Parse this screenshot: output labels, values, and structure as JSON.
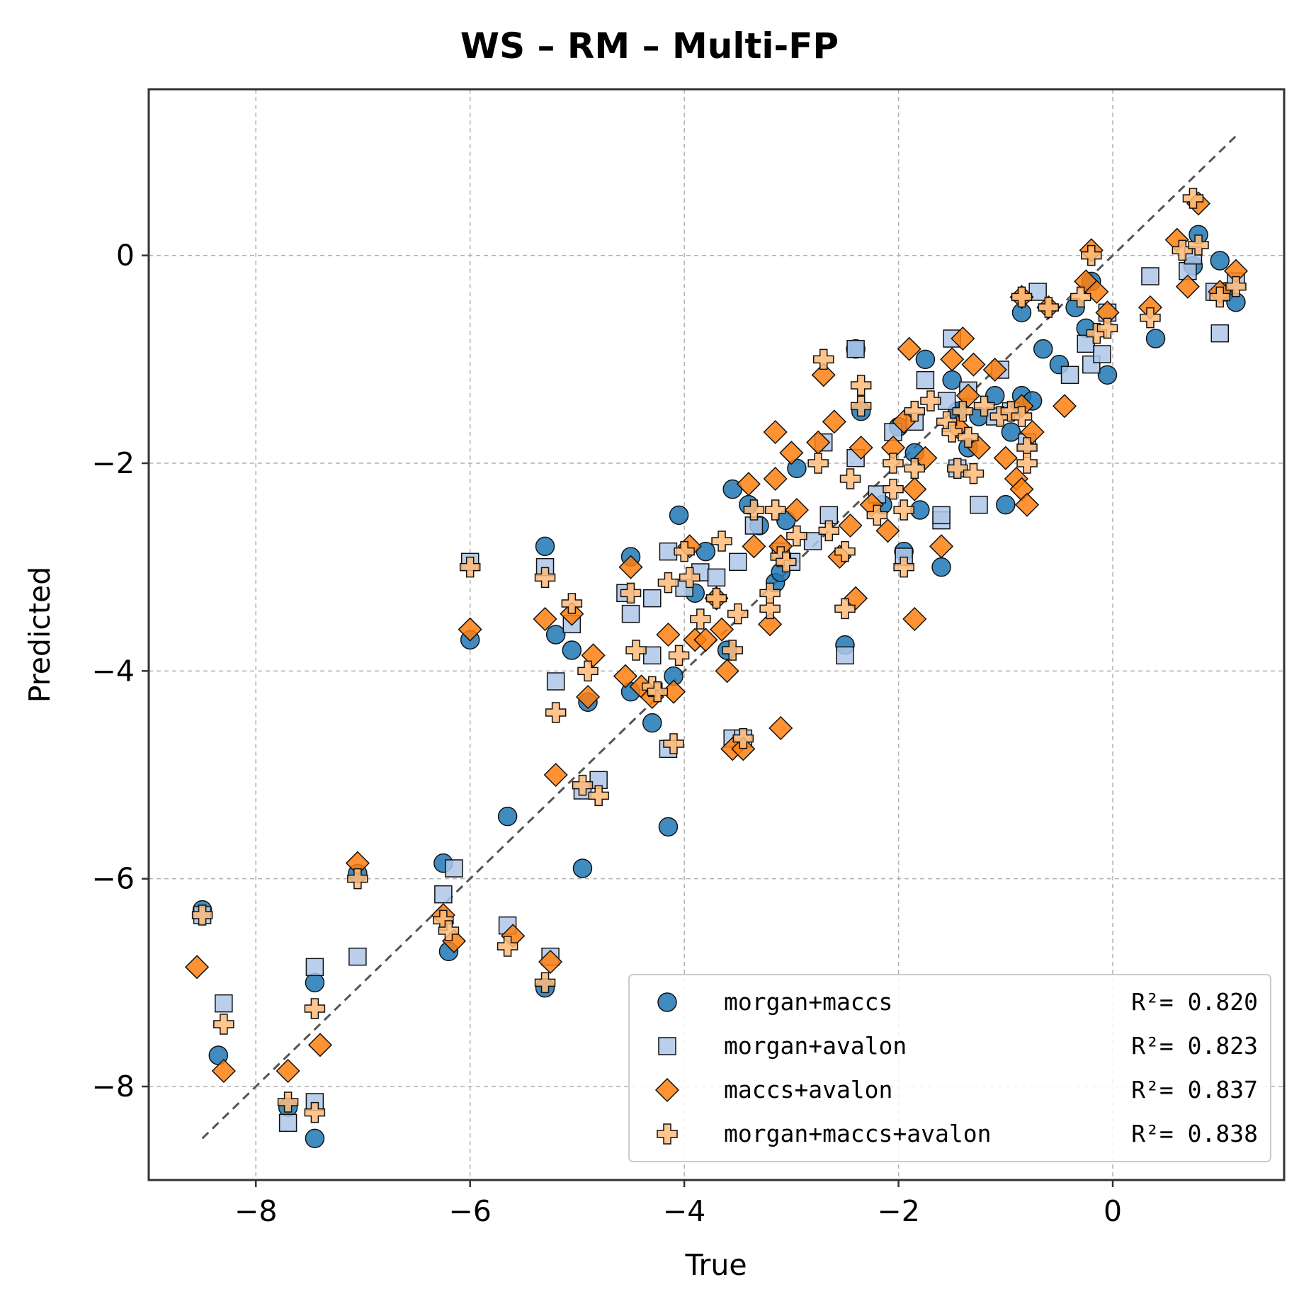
{
  "chart_data": {
    "type": "scatter",
    "title": "WS – RM – Multi-FP",
    "xlabel": "True",
    "ylabel": "Predicted",
    "xlim": [
      -9.0,
      1.6
    ],
    "ylim": [
      -8.9,
      1.6
    ],
    "xticks": [
      -8,
      -6,
      -4,
      -2,
      0
    ],
    "yticks": [
      -8,
      -6,
      -4,
      -2,
      0
    ],
    "grid": true,
    "legend_position": "lower-right",
    "identity_line": {
      "from": [
        -8.5,
        -8.5
      ],
      "to": [
        1.15,
        1.15
      ],
      "color": "#555555",
      "style": "dashed"
    },
    "series": [
      {
        "name": "morgan+maccs",
        "r2_label": "R²= 0.820",
        "marker": "circle",
        "color": "#1f77b4",
        "points": [
          [
            -8.5,
            -6.3
          ],
          [
            -8.35,
            -7.7
          ],
          [
            -7.7,
            -8.2
          ],
          [
            -7.45,
            -8.5
          ],
          [
            -7.45,
            -7.0
          ],
          [
            -7.05,
            -5.95
          ],
          [
            -6.25,
            -5.85
          ],
          [
            -6.2,
            -6.7
          ],
          [
            -6.0,
            -3.7
          ],
          [
            -5.65,
            -5.4
          ],
          [
            -5.3,
            -2.8
          ],
          [
            -5.3,
            -7.05
          ],
          [
            -5.2,
            -3.65
          ],
          [
            -5.05,
            -3.8
          ],
          [
            -4.95,
            -5.9
          ],
          [
            -4.9,
            -4.3
          ],
          [
            -4.5,
            -2.9
          ],
          [
            -4.5,
            -4.2
          ],
          [
            -4.3,
            -4.5
          ],
          [
            -4.15,
            -5.5
          ],
          [
            -4.1,
            -4.05
          ],
          [
            -4.05,
            -2.5
          ],
          [
            -3.9,
            -3.25
          ],
          [
            -3.8,
            -2.85
          ],
          [
            -3.6,
            -3.8
          ],
          [
            -3.55,
            -2.25
          ],
          [
            -3.4,
            -2.4
          ],
          [
            -3.3,
            -2.6
          ],
          [
            -3.15,
            -3.15
          ],
          [
            -3.1,
            -3.05
          ],
          [
            -3.05,
            -2.55
          ],
          [
            -2.95,
            -2.05
          ],
          [
            -2.5,
            -3.75
          ],
          [
            -2.4,
            -0.9
          ],
          [
            -2.35,
            -1.5
          ],
          [
            -2.15,
            -2.4
          ],
          [
            -2.0,
            -1.65
          ],
          [
            -1.95,
            -2.85
          ],
          [
            -1.85,
            -1.9
          ],
          [
            -1.8,
            -2.45
          ],
          [
            -1.75,
            -1.0
          ],
          [
            -1.6,
            -3.0
          ],
          [
            -1.5,
            -1.2
          ],
          [
            -1.45,
            -1.5
          ],
          [
            -1.35,
            -1.85
          ],
          [
            -1.25,
            -1.55
          ],
          [
            -1.1,
            -1.35
          ],
          [
            -1.0,
            -2.4
          ],
          [
            -0.95,
            -1.7
          ],
          [
            -0.85,
            -0.55
          ],
          [
            -0.85,
            -1.35
          ],
          [
            -0.75,
            -1.4
          ],
          [
            -0.65,
            -0.9
          ],
          [
            -0.5,
            -1.05
          ],
          [
            -0.35,
            -0.5
          ],
          [
            -0.25,
            -0.7
          ],
          [
            -0.2,
            -0.25
          ],
          [
            -0.05,
            -1.15
          ],
          [
            0.4,
            -0.8
          ],
          [
            0.8,
            0.2
          ],
          [
            0.75,
            -0.1
          ],
          [
            1.0,
            -0.05
          ],
          [
            1.05,
            -0.35
          ],
          [
            1.15,
            -0.45
          ]
        ]
      },
      {
        "name": "morgan+avalon",
        "r2_label": "R²= 0.823",
        "marker": "square",
        "color": "#aec7e8",
        "points": [
          [
            -8.5,
            -6.35
          ],
          [
            -8.3,
            -7.2
          ],
          [
            -7.7,
            -8.35
          ],
          [
            -7.45,
            -8.15
          ],
          [
            -7.45,
            -6.85
          ],
          [
            -7.05,
            -6.75
          ],
          [
            -6.25,
            -6.15
          ],
          [
            -6.15,
            -5.9
          ],
          [
            -6.0,
            -2.95
          ],
          [
            -5.65,
            -6.45
          ],
          [
            -5.3,
            -3.0
          ],
          [
            -5.25,
            -6.75
          ],
          [
            -5.2,
            -4.1
          ],
          [
            -5.05,
            -3.55
          ],
          [
            -4.95,
            -5.15
          ],
          [
            -4.8,
            -5.05
          ],
          [
            -4.55,
            -3.25
          ],
          [
            -4.5,
            -3.45
          ],
          [
            -4.3,
            -3.3
          ],
          [
            -4.3,
            -3.85
          ],
          [
            -4.15,
            -4.75
          ],
          [
            -4.15,
            -2.85
          ],
          [
            -4.0,
            -3.2
          ],
          [
            -3.85,
            -3.05
          ],
          [
            -3.7,
            -3.1
          ],
          [
            -3.55,
            -4.65
          ],
          [
            -3.45,
            -4.65
          ],
          [
            -3.5,
            -2.95
          ],
          [
            -3.35,
            -2.6
          ],
          [
            -3.1,
            -2.85
          ],
          [
            -3.0,
            -2.95
          ],
          [
            -2.8,
            -2.75
          ],
          [
            -2.7,
            -1.8
          ],
          [
            -2.65,
            -2.5
          ],
          [
            -2.5,
            -3.85
          ],
          [
            -2.4,
            -0.9
          ],
          [
            -2.4,
            -1.95
          ],
          [
            -2.2,
            -2.3
          ],
          [
            -2.05,
            -1.7
          ],
          [
            -1.95,
            -2.9
          ],
          [
            -1.85,
            -1.6
          ],
          [
            -1.75,
            -1.2
          ],
          [
            -1.6,
            -2.55
          ],
          [
            -1.6,
            -2.5
          ],
          [
            -1.55,
            -1.4
          ],
          [
            -1.5,
            -0.8
          ],
          [
            -1.45,
            -2.05
          ],
          [
            -1.35,
            -1.3
          ],
          [
            -1.25,
            -2.4
          ],
          [
            -1.1,
            -1.55
          ],
          [
            -1.05,
            -1.1
          ],
          [
            -0.95,
            -1.5
          ],
          [
            -0.8,
            -1.8
          ],
          [
            -0.7,
            -0.35
          ],
          [
            -0.4,
            -1.15
          ],
          [
            -0.25,
            -0.85
          ],
          [
            -0.2,
            -1.05
          ],
          [
            -0.1,
            -0.95
          ],
          [
            -0.05,
            -0.55
          ],
          [
            0.35,
            -0.2
          ],
          [
            0.7,
            -0.15
          ],
          [
            0.75,
            0.0
          ],
          [
            0.95,
            -0.35
          ],
          [
            1.0,
            -0.75
          ],
          [
            1.15,
            -0.25
          ]
        ]
      },
      {
        "name": "maccs+avalon",
        "r2_label": "R²= 0.837",
        "marker": "diamond",
        "color": "#ff7f0e",
        "points": [
          [
            -8.55,
            -6.85
          ],
          [
            -8.3,
            -7.85
          ],
          [
            -7.7,
            -7.85
          ],
          [
            -7.4,
            -7.6
          ],
          [
            -7.05,
            -5.85
          ],
          [
            -6.25,
            -6.35
          ],
          [
            -6.15,
            -6.6
          ],
          [
            -6.0,
            -3.6
          ],
          [
            -5.6,
            -6.55
          ],
          [
            -5.3,
            -3.5
          ],
          [
            -5.25,
            -6.8
          ],
          [
            -5.2,
            -5.0
          ],
          [
            -5.05,
            -3.45
          ],
          [
            -4.9,
            -4.25
          ],
          [
            -4.85,
            -3.85
          ],
          [
            -4.55,
            -4.05
          ],
          [
            -4.5,
            -3.0
          ],
          [
            -4.4,
            -4.15
          ],
          [
            -4.3,
            -4.25
          ],
          [
            -4.15,
            -3.65
          ],
          [
            -4.1,
            -4.2
          ],
          [
            -3.95,
            -2.8
          ],
          [
            -3.9,
            -3.7
          ],
          [
            -3.8,
            -3.7
          ],
          [
            -3.7,
            -3.3
          ],
          [
            -3.65,
            -3.6
          ],
          [
            -3.6,
            -4.0
          ],
          [
            -3.55,
            -4.75
          ],
          [
            -3.45,
            -4.75
          ],
          [
            -3.4,
            -2.2
          ],
          [
            -3.35,
            -2.8
          ],
          [
            -3.2,
            -3.55
          ],
          [
            -3.15,
            -1.7
          ],
          [
            -3.15,
            -2.15
          ],
          [
            -3.1,
            -2.8
          ],
          [
            -3.1,
            -4.55
          ],
          [
            -3.0,
            -1.9
          ],
          [
            -2.95,
            -2.45
          ],
          [
            -2.75,
            -1.8
          ],
          [
            -2.7,
            -1.15
          ],
          [
            -2.6,
            -1.6
          ],
          [
            -2.55,
            -2.9
          ],
          [
            -2.45,
            -2.6
          ],
          [
            -2.4,
            -3.3
          ],
          [
            -2.35,
            -1.85
          ],
          [
            -2.25,
            -2.4
          ],
          [
            -2.1,
            -2.65
          ],
          [
            -2.05,
            -1.85
          ],
          [
            -1.95,
            -1.6
          ],
          [
            -1.9,
            -0.9
          ],
          [
            -1.85,
            -2.25
          ],
          [
            -1.85,
            -3.5
          ],
          [
            -1.75,
            -1.95
          ],
          [
            -1.6,
            -2.8
          ],
          [
            -1.5,
            -1.0
          ],
          [
            -1.45,
            -1.65
          ],
          [
            -1.4,
            -0.8
          ],
          [
            -1.35,
            -1.35
          ],
          [
            -1.3,
            -1.05
          ],
          [
            -1.25,
            -1.85
          ],
          [
            -1.1,
            -1.1
          ],
          [
            -1.0,
            -1.95
          ],
          [
            -0.9,
            -2.15
          ],
          [
            -0.85,
            -1.45
          ],
          [
            -0.85,
            -0.4
          ],
          [
            -0.85,
            -2.25
          ],
          [
            -0.8,
            -2.4
          ],
          [
            -0.75,
            -1.7
          ],
          [
            -0.6,
            -0.5
          ],
          [
            -0.45,
            -1.45
          ],
          [
            -0.25,
            -0.25
          ],
          [
            -0.2,
            0.05
          ],
          [
            -0.15,
            -0.35
          ],
          [
            -0.05,
            -0.55
          ],
          [
            0.35,
            -0.5
          ],
          [
            0.6,
            0.15
          ],
          [
            0.7,
            -0.3
          ],
          [
            0.8,
            0.5
          ],
          [
            1.0,
            -0.35
          ],
          [
            1.15,
            -0.15
          ]
        ]
      },
      {
        "name": "morgan+maccs+avalon",
        "r2_label": "R²= 0.838",
        "marker": "plus",
        "color": "#ffbb78",
        "points": [
          [
            -8.5,
            -6.35
          ],
          [
            -8.3,
            -7.4
          ],
          [
            -7.7,
            -8.15
          ],
          [
            -7.45,
            -8.25
          ],
          [
            -7.45,
            -7.25
          ],
          [
            -7.05,
            -6.0
          ],
          [
            -6.25,
            -6.4
          ],
          [
            -6.2,
            -6.5
          ],
          [
            -6.0,
            -3.0
          ],
          [
            -5.65,
            -6.65
          ],
          [
            -5.3,
            -3.1
          ],
          [
            -5.3,
            -7.0
          ],
          [
            -5.2,
            -4.4
          ],
          [
            -5.05,
            -3.35
          ],
          [
            -4.95,
            -5.1
          ],
          [
            -4.9,
            -4.0
          ],
          [
            -4.8,
            -5.2
          ],
          [
            -4.5,
            -3.25
          ],
          [
            -4.45,
            -3.8
          ],
          [
            -4.3,
            -4.15
          ],
          [
            -4.25,
            -4.2
          ],
          [
            -4.15,
            -3.15
          ],
          [
            -4.1,
            -4.7
          ],
          [
            -4.05,
            -3.85
          ],
          [
            -4.0,
            -2.85
          ],
          [
            -3.95,
            -3.1
          ],
          [
            -3.85,
            -3.5
          ],
          [
            -3.7,
            -3.3
          ],
          [
            -3.65,
            -2.75
          ],
          [
            -3.55,
            -3.8
          ],
          [
            -3.5,
            -3.45
          ],
          [
            -3.45,
            -4.65
          ],
          [
            -3.35,
            -2.45
          ],
          [
            -3.2,
            -3.4
          ],
          [
            -3.2,
            -3.25
          ],
          [
            -3.15,
            -2.45
          ],
          [
            -3.1,
            -2.9
          ],
          [
            -3.05,
            -2.95
          ],
          [
            -2.95,
            -2.7
          ],
          [
            -2.75,
            -2.0
          ],
          [
            -2.7,
            -1.0
          ],
          [
            -2.65,
            -2.65
          ],
          [
            -2.5,
            -2.85
          ],
          [
            -2.5,
            -3.4
          ],
          [
            -2.45,
            -2.15
          ],
          [
            -2.35,
            -1.25
          ],
          [
            -2.35,
            -1.45
          ],
          [
            -2.2,
            -2.5
          ],
          [
            -2.05,
            -2.0
          ],
          [
            -2.05,
            -2.25
          ],
          [
            -1.95,
            -2.45
          ],
          [
            -1.95,
            -3.0
          ],
          [
            -1.85,
            -1.5
          ],
          [
            -1.85,
            -2.05
          ],
          [
            -1.7,
            -1.4
          ],
          [
            -1.55,
            -1.6
          ],
          [
            -1.5,
            -1.7
          ],
          [
            -1.45,
            -2.05
          ],
          [
            -1.4,
            -1.5
          ],
          [
            -1.35,
            -1.75
          ],
          [
            -1.3,
            -2.1
          ],
          [
            -1.2,
            -1.45
          ],
          [
            -1.05,
            -1.55
          ],
          [
            -0.95,
            -1.5
          ],
          [
            -0.85,
            -1.55
          ],
          [
            -0.85,
            -0.4
          ],
          [
            -0.8,
            -1.85
          ],
          [
            -0.8,
            -2.0
          ],
          [
            -0.6,
            -0.5
          ],
          [
            -0.3,
            -0.4
          ],
          [
            -0.2,
            0.0
          ],
          [
            -0.15,
            -0.75
          ],
          [
            -0.05,
            -0.7
          ],
          [
            0.35,
            -0.6
          ],
          [
            0.65,
            0.05
          ],
          [
            0.75,
            0.55
          ],
          [
            0.8,
            0.1
          ],
          [
            1.0,
            -0.4
          ],
          [
            1.15,
            -0.3
          ]
        ]
      }
    ]
  }
}
